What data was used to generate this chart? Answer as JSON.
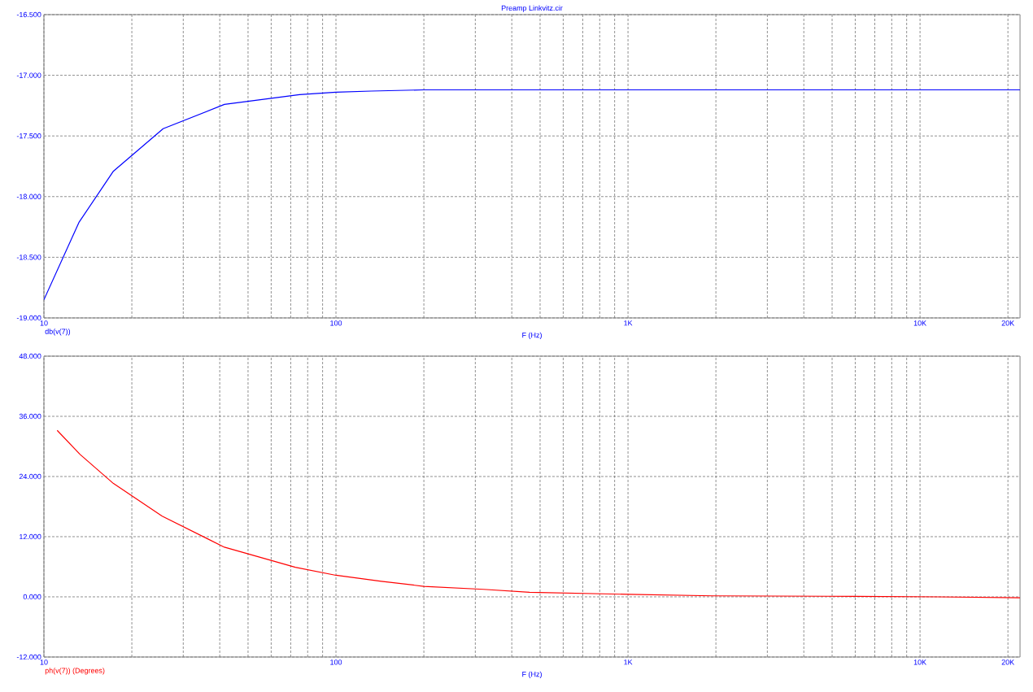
{
  "chart_data": [
    {
      "type": "line",
      "title": "Preamp Linkvitz.cir",
      "xlabel": "F (Hz)",
      "log": "x",
      "grid": true,
      "legend": "bottom left",
      "line_style": "solid",
      "xlim": [
        10,
        22000
      ],
      "ylim": [
        -19,
        -16.5
      ],
      "xticks": [
        {
          "value": 10,
          "label": "10"
        },
        {
          "value": 20,
          "label": null
        },
        {
          "value": 30,
          "label": null
        },
        {
          "value": 40,
          "label": null
        },
        {
          "value": 50,
          "label": null
        },
        {
          "value": 60,
          "label": null
        },
        {
          "value": 70,
          "label": null
        },
        {
          "value": 80,
          "label": null
        },
        {
          "value": 90,
          "label": null
        },
        {
          "value": 100,
          "label": "100"
        },
        {
          "value": 200,
          "label": null
        },
        {
          "value": 300,
          "label": null
        },
        {
          "value": 400,
          "label": null
        },
        {
          "value": 500,
          "label": null
        },
        {
          "value": 600,
          "label": null
        },
        {
          "value": 700,
          "label": null
        },
        {
          "value": 800,
          "label": null
        },
        {
          "value": 900,
          "label": null
        },
        {
          "value": 1000,
          "label": "1K"
        },
        {
          "value": 2000,
          "label": null
        },
        {
          "value": 3000,
          "label": null
        },
        {
          "value": 4000,
          "label": null
        },
        {
          "value": 5000,
          "label": null
        },
        {
          "value": 6000,
          "label": null
        },
        {
          "value": 7000,
          "label": null
        },
        {
          "value": 8000,
          "label": null
        },
        {
          "value": 9000,
          "label": null
        },
        {
          "value": 10000,
          "label": "10K"
        },
        {
          "value": 20000,
          "label": "20K"
        }
      ],
      "yticks": [
        {
          "value": -19,
          "label": "-19.000"
        },
        {
          "value": -18.5,
          "label": "-18.500"
        },
        {
          "value": -18,
          "label": "-18.000"
        },
        {
          "value": -17.5,
          "label": "-17.500"
        },
        {
          "value": -17,
          "label": "-17.000"
        },
        {
          "value": -16.5,
          "label": "-16.500"
        }
      ],
      "series": [
        {
          "name": "db(v(7))",
          "color": "#0000ff",
          "x": [
            10,
            13.2,
            17.3,
            25.6,
            41.5,
            75,
            100,
            132,
            200,
            1000,
            22000
          ],
          "values": [
            -18.85,
            -18.21,
            -17.79,
            -17.44,
            -17.24,
            -17.16,
            -17.14,
            -17.13,
            -17.12,
            -17.12,
            -17.12
          ]
        }
      ]
    },
    {
      "type": "line",
      "xlabel": "F (Hz)",
      "log": "x",
      "grid": true,
      "legend": "bottom left",
      "line_style": "solid",
      "xlim": [
        10,
        22000
      ],
      "ylim": [
        -12,
        48
      ],
      "xticks": [
        {
          "value": 10,
          "label": "10"
        },
        {
          "value": 20,
          "label": null
        },
        {
          "value": 30,
          "label": null
        },
        {
          "value": 40,
          "label": null
        },
        {
          "value": 50,
          "label": null
        },
        {
          "value": 60,
          "label": null
        },
        {
          "value": 70,
          "label": null
        },
        {
          "value": 80,
          "label": null
        },
        {
          "value": 90,
          "label": null
        },
        {
          "value": 100,
          "label": "100"
        },
        {
          "value": 200,
          "label": null
        },
        {
          "value": 300,
          "label": null
        },
        {
          "value": 400,
          "label": null
        },
        {
          "value": 500,
          "label": null
        },
        {
          "value": 600,
          "label": null
        },
        {
          "value": 700,
          "label": null
        },
        {
          "value": 800,
          "label": null
        },
        {
          "value": 900,
          "label": null
        },
        {
          "value": 1000,
          "label": "1K"
        },
        {
          "value": 2000,
          "label": null
        },
        {
          "value": 3000,
          "label": null
        },
        {
          "value": 4000,
          "label": null
        },
        {
          "value": 5000,
          "label": null
        },
        {
          "value": 6000,
          "label": null
        },
        {
          "value": 7000,
          "label": null
        },
        {
          "value": 8000,
          "label": null
        },
        {
          "value": 9000,
          "label": null
        },
        {
          "value": 10000,
          "label": "10K"
        },
        {
          "value": 20000,
          "label": "20K"
        }
      ],
      "yticks": [
        {
          "value": -12,
          "label": "-12.000"
        },
        {
          "value": 0,
          "label": "0.000"
        },
        {
          "value": 12,
          "label": "12.000"
        },
        {
          "value": 24,
          "label": "24.000"
        },
        {
          "value": 36,
          "label": "36.000"
        },
        {
          "value": 48,
          "label": "48.000"
        }
      ],
      "series": [
        {
          "name": "ph(v(7)) (Degrees)",
          "color": "#ff0000",
          "x": [
            11.1,
            13.3,
            17.3,
            25.4,
            41.5,
            72.6,
            100,
            143,
            200,
            320,
            460,
            1000,
            1950,
            6000,
            11500,
            22000
          ],
          "values": [
            33.2,
            28.4,
            22.6,
            16.1,
            9.9,
            5.9,
            4.3,
            3.1,
            2.1,
            1.5,
            0.9,
            0.5,
            0.2,
            0.1,
            0,
            -0.2
          ]
        }
      ]
    }
  ]
}
